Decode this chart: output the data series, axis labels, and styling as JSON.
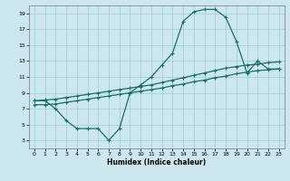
{
  "background_color": "#cce8ee",
  "grid_color": "#9dcfcf",
  "line_color": "#1a7060",
  "xlabel": "Humidex (Indice chaleur)",
  "xlim": [
    -0.5,
    23.5
  ],
  "ylim": [
    2,
    20
  ],
  "xticks": [
    0,
    1,
    2,
    3,
    4,
    5,
    6,
    7,
    8,
    9,
    10,
    11,
    12,
    13,
    14,
    15,
    16,
    17,
    18,
    19,
    20,
    21,
    22,
    23
  ],
  "yticks": [
    3,
    5,
    7,
    9,
    11,
    13,
    15,
    17,
    19
  ],
  "curve1_x": [
    0,
    1,
    2,
    3,
    4,
    5,
    6,
    7,
    8,
    9,
    10,
    11,
    12,
    13,
    14,
    15,
    16,
    17,
    18,
    19,
    20,
    21,
    22,
    23
  ],
  "curve1_y": [
    8.0,
    8.0,
    7.0,
    5.5,
    4.5,
    4.5,
    4.5,
    3.0,
    4.5,
    9.0,
    10.0,
    11.0,
    12.5,
    14.0,
    18.0,
    19.2,
    19.5,
    19.5,
    18.5,
    15.5,
    11.5,
    13.0,
    12.0,
    12.0
  ],
  "curve2_x": [
    0,
    1,
    2,
    3,
    4,
    5,
    6,
    7,
    8,
    9,
    10,
    11,
    12,
    13,
    14,
    15,
    16,
    17,
    18,
    19,
    20,
    21,
    22,
    23
  ],
  "curve2_y": [
    8.0,
    8.1,
    8.2,
    8.4,
    8.6,
    8.8,
    9.0,
    9.2,
    9.4,
    9.6,
    9.8,
    10.0,
    10.3,
    10.6,
    10.9,
    11.2,
    11.5,
    11.8,
    12.1,
    12.3,
    12.5,
    12.6,
    12.8,
    12.9
  ],
  "curve3_x": [
    0,
    1,
    2,
    3,
    4,
    5,
    6,
    7,
    8,
    9,
    10,
    11,
    12,
    13,
    14,
    15,
    16,
    17,
    18,
    19,
    20,
    21,
    22,
    23
  ],
  "curve3_y": [
    7.5,
    7.5,
    7.6,
    7.8,
    8.0,
    8.2,
    8.4,
    8.6,
    8.8,
    9.0,
    9.2,
    9.4,
    9.6,
    9.9,
    10.1,
    10.4,
    10.6,
    10.9,
    11.1,
    11.4,
    11.6,
    11.8,
    11.9,
    12.0
  ],
  "marker": "+",
  "markersize": 3,
  "linewidth": 0.9,
  "tick_fontsize": 4.5,
  "xlabel_fontsize": 5.5
}
